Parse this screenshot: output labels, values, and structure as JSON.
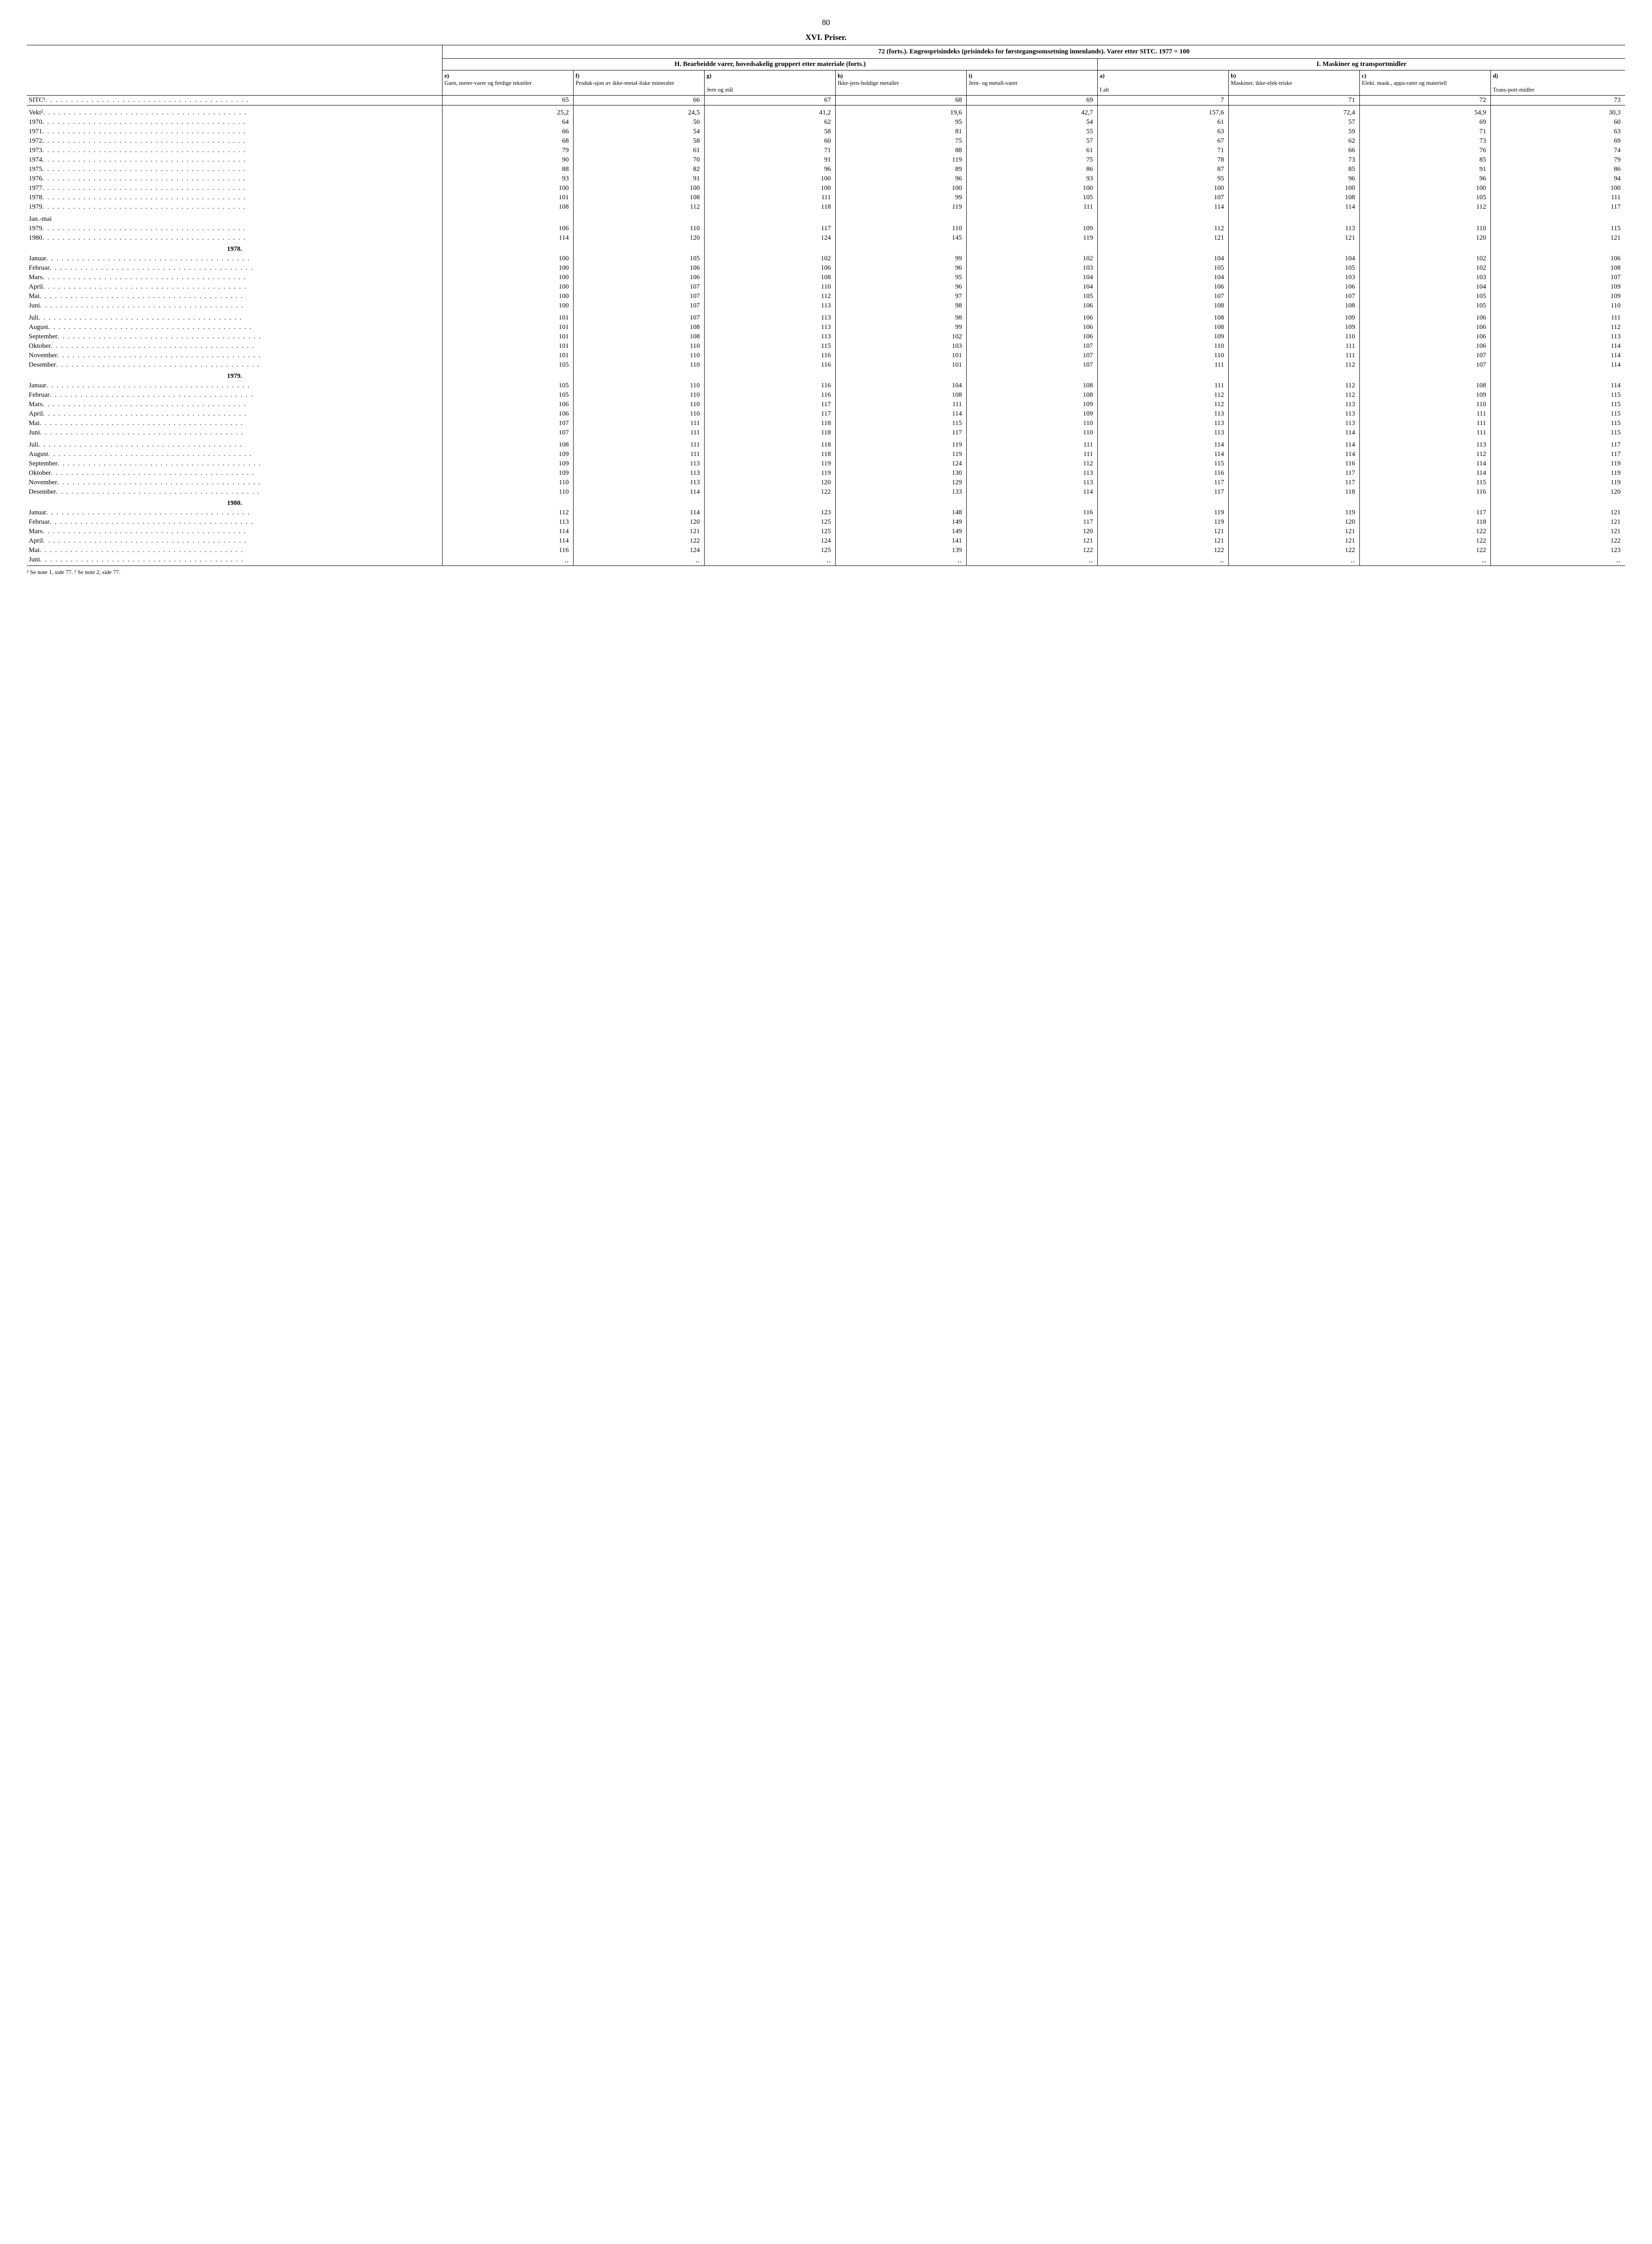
{
  "page_number": "80",
  "section_title": "XVI. Priser.",
  "table_title": "72 (forts.). Engrosprisindeks (prisindeks for førstegangsomsetning innenlands). Varer etter SITC. 1977 = 100",
  "group_headers": {
    "H": "H. Bearbeidde varer, hovedsakelig gruppert etter materiale (forts.)",
    "I": "I. Maskiner og transportmidler"
  },
  "columns": [
    {
      "key": "e",
      "label": "e)\nGarn, meter-varer og ferdige tekstiler"
    },
    {
      "key": "f",
      "label": "f)\nProduk-sjon av ikke-metal-liske mineraler"
    },
    {
      "key": "g",
      "label": "g)\n\nJern og stål"
    },
    {
      "key": "h",
      "label": "h)\nIkke-jern-holdige metaller"
    },
    {
      "key": "i",
      "label": "i)\nJern- og metall-varer"
    },
    {
      "key": "a",
      "label": "a)\n\nI alt"
    },
    {
      "key": "b",
      "label": "b)\nMaskiner, ikke-elek-triske"
    },
    {
      "key": "c",
      "label": "c)\nElekt. mask., appa-rater og materiell"
    },
    {
      "key": "d",
      "label": "d)\n\nTrans-port-midler"
    }
  ],
  "sitc_label": "SITC¹",
  "sitc_codes": [
    "65",
    "66",
    "67",
    "68",
    "69",
    "7",
    "71",
    "72",
    "73"
  ],
  "rows": [
    {
      "label": "Vekt²",
      "dots": true,
      "vals": [
        "25,2",
        "24,5",
        "41,2",
        "19,6",
        "42,7",
        "157,6",
        "72,4",
        "54,9",
        "30,3"
      ],
      "spacer": true
    },
    {
      "label": "1970",
      "dots": true,
      "vals": [
        "64",
        "50",
        "62",
        "95",
        "54",
        "61",
        "57",
        "69",
        "60"
      ]
    },
    {
      "label": "1971",
      "dots": true,
      "vals": [
        "66",
        "54",
        "58",
        "81",
        "55",
        "63",
        "59",
        "71",
        "63"
      ]
    },
    {
      "label": "1972",
      "dots": true,
      "vals": [
        "68",
        "58",
        "60",
        "75",
        "57",
        "67",
        "62",
        "73",
        "69"
      ]
    },
    {
      "label": "1973",
      "dots": true,
      "vals": [
        "79",
        "61",
        "71",
        "88",
        "61",
        "71",
        "66",
        "76",
        "74"
      ]
    },
    {
      "label": "1974",
      "dots": true,
      "vals": [
        "90",
        "70",
        "91",
        "119",
        "75",
        "78",
        "73",
        "85",
        "79"
      ]
    },
    {
      "label": "1975",
      "dots": true,
      "vals": [
        "88",
        "82",
        "96",
        "89",
        "86",
        "87",
        "85",
        "91",
        "86"
      ]
    },
    {
      "label": "1976",
      "dots": true,
      "vals": [
        "93",
        "91",
        "100",
        "96",
        "93",
        "95",
        "96",
        "96",
        "94"
      ]
    },
    {
      "label": "1977",
      "dots": true,
      "vals": [
        "100",
        "100",
        "100",
        "100",
        "100",
        "100",
        "100",
        "100",
        "100"
      ]
    },
    {
      "label": "1978",
      "dots": true,
      "vals": [
        "101",
        "108",
        "111",
        "99",
        "105",
        "107",
        "108",
        "105",
        "111"
      ]
    },
    {
      "label": "1979",
      "dots": true,
      "vals": [
        "108",
        "112",
        "118",
        "119",
        "111",
        "114",
        "114",
        "112",
        "117"
      ]
    },
    {
      "label": "Jan.-mai",
      "dots": false,
      "vals": [
        "",
        "",
        "",
        "",
        "",
        "",
        "",
        "",
        ""
      ],
      "spacer": true
    },
    {
      "label": "1979",
      "dots": true,
      "vals": [
        "106",
        "110",
        "117",
        "110",
        "109",
        "112",
        "113",
        "110",
        "115"
      ]
    },
    {
      "label": "1980",
      "dots": true,
      "vals": [
        "114",
        "120",
        "124",
        "145",
        "119",
        "121",
        "121",
        "120",
        "121"
      ]
    },
    {
      "section": "1978."
    },
    {
      "label": "Januar",
      "dots": true,
      "vals": [
        "100",
        "105",
        "102",
        "99",
        "102",
        "104",
        "104",
        "102",
        "106"
      ]
    },
    {
      "label": "Februar",
      "dots": true,
      "vals": [
        "100",
        "106",
        "106",
        "96",
        "103",
        "105",
        "105",
        "102",
        "108"
      ]
    },
    {
      "label": "Mars",
      "dots": true,
      "vals": [
        "100",
        "106",
        "108",
        "95",
        "104",
        "104",
        "103",
        "103",
        "107"
      ]
    },
    {
      "label": "April",
      "dots": true,
      "vals": [
        "100",
        "107",
        "110",
        "96",
        "104",
        "106",
        "106",
        "104",
        "109"
      ]
    },
    {
      "label": "Mai",
      "dots": true,
      "vals": [
        "100",
        "107",
        "112",
        "97",
        "105",
        "107",
        "107",
        "105",
        "109"
      ]
    },
    {
      "label": "Juni",
      "dots": true,
      "vals": [
        "100",
        "107",
        "113",
        "98",
        "106",
        "108",
        "108",
        "105",
        "110"
      ]
    },
    {
      "label": "Juli",
      "dots": true,
      "vals": [
        "101",
        "107",
        "113",
        "98",
        "106",
        "108",
        "109",
        "106",
        "111"
      ],
      "spacer": true
    },
    {
      "label": "August",
      "dots": true,
      "vals": [
        "101",
        "108",
        "113",
        "99",
        "106",
        "108",
        "109",
        "106",
        "112"
      ]
    },
    {
      "label": "September",
      "dots": true,
      "vals": [
        "101",
        "108",
        "113",
        "102",
        "106",
        "109",
        "110",
        "106",
        "113"
      ]
    },
    {
      "label": "Oktober",
      "dots": true,
      "vals": [
        "101",
        "110",
        "115",
        "103",
        "107",
        "110",
        "111",
        "106",
        "114"
      ]
    },
    {
      "label": "November",
      "dots": true,
      "vals": [
        "101",
        "110",
        "116",
        "101",
        "107",
        "110",
        "111",
        "107",
        "114"
      ]
    },
    {
      "label": "Desember",
      "dots": true,
      "vals": [
        "105",
        "110",
        "116",
        "101",
        "107",
        "111",
        "112",
        "107",
        "114"
      ]
    },
    {
      "section": "1979."
    },
    {
      "label": "Januar",
      "dots": true,
      "vals": [
        "105",
        "110",
        "116",
        "104",
        "108",
        "111",
        "112",
        "108",
        "114"
      ]
    },
    {
      "label": "Februar",
      "dots": true,
      "vals": [
        "105",
        "110",
        "116",
        "108",
        "108",
        "112",
        "112",
        "109",
        "115"
      ]
    },
    {
      "label": "Mars",
      "dots": true,
      "vals": [
        "106",
        "110",
        "117",
        "111",
        "109",
        "112",
        "113",
        "110",
        "115"
      ]
    },
    {
      "label": "April",
      "dots": true,
      "vals": [
        "106",
        "110",
        "117",
        "114",
        "109",
        "113",
        "113",
        "111",
        "115"
      ]
    },
    {
      "label": "Mai",
      "dots": true,
      "vals": [
        "107",
        "111",
        "118",
        "115",
        "110",
        "113",
        "113",
        "111",
        "115"
      ]
    },
    {
      "label": "Juni",
      "dots": true,
      "vals": [
        "107",
        "111",
        "118",
        "117",
        "110",
        "113",
        "114",
        "111",
        "115"
      ]
    },
    {
      "label": "Juli",
      "dots": true,
      "vals": [
        "108",
        "111",
        "118",
        "119",
        "111",
        "114",
        "114",
        "113",
        "117"
      ],
      "spacer": true
    },
    {
      "label": "August",
      "dots": true,
      "vals": [
        "109",
        "111",
        "118",
        "119",
        "111",
        "114",
        "114",
        "112",
        "117"
      ]
    },
    {
      "label": "September",
      "dots": true,
      "vals": [
        "109",
        "113",
        "119",
        "124",
        "112",
        "115",
        "116",
        "114",
        "119"
      ]
    },
    {
      "label": "Oktober",
      "dots": true,
      "vals": [
        "109",
        "113",
        "119",
        "130",
        "113",
        "116",
        "117",
        "114",
        "119"
      ]
    },
    {
      "label": "November",
      "dots": true,
      "vals": [
        "110",
        "113",
        "120",
        "129",
        "113",
        "117",
        "117",
        "115",
        "119"
      ]
    },
    {
      "label": "Desember",
      "dots": true,
      "vals": [
        "110",
        "114",
        "122",
        "133",
        "114",
        "117",
        "118",
        "116",
        "120"
      ]
    },
    {
      "section": "1980."
    },
    {
      "label": "Januar",
      "dots": true,
      "vals": [
        "112",
        "114",
        "123",
        "148",
        "116",
        "119",
        "119",
        "117",
        "121"
      ]
    },
    {
      "label": "Februar",
      "dots": true,
      "vals": [
        "113",
        "120",
        "125",
        "149",
        "117",
        "119",
        "120",
        "118",
        "121"
      ]
    },
    {
      "label": "Mars",
      "dots": true,
      "vals": [
        "114",
        "121",
        "125",
        "149",
        "120",
        "121",
        "121",
        "122",
        "121"
      ]
    },
    {
      "label": "April",
      "dots": true,
      "vals": [
        "114",
        "122",
        "124",
        "141",
        "121",
        "121",
        "121",
        "122",
        "122"
      ]
    },
    {
      "label": "Mai",
      "dots": true,
      "vals": [
        "116",
        "124",
        "125",
        "139",
        "122",
        "122",
        "122",
        "122",
        "123"
      ]
    },
    {
      "label": "Juni",
      "dots": true,
      "vals": [
        "‥",
        "‥",
        "‥",
        "‥",
        "‥",
        "‥",
        "‥",
        "‥",
        "‥"
      ],
      "last": true
    }
  ],
  "footnote": "¹ Se note 1, side 77.  ² Se note 2, side 77."
}
